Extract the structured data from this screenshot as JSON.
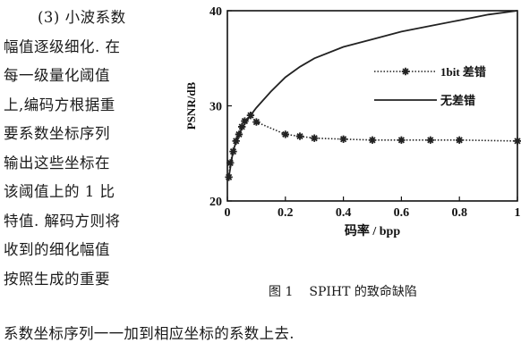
{
  "text": {
    "left_lines": [
      "(3) 小波系数",
      "幅值逐级细化. 在",
      "每一级量化阈值",
      "上,编码方根据重",
      "要系数坐标序列",
      "输出这些坐标在",
      "该阈值上的 1 比",
      "特值. 解码方则将",
      "收到的细化幅值",
      "按照生成的重要"
    ],
    "bottom_line": "系数坐标序列一一加到相应坐标的系数上去."
  },
  "figure": {
    "number": "图 1",
    "caption": "SPIHT 的致命缺陷"
  },
  "chart_data": {
    "type": "line",
    "xlabel": "码率 / bpp",
    "ylabel": "PSNR/dB",
    "xlim": [
      0,
      1
    ],
    "ylim": [
      20,
      40
    ],
    "xticks": [
      "0",
      "0.2",
      "0.4",
      "0.6",
      "0.8",
      "1"
    ],
    "yticks": [
      "20",
      "30",
      "40"
    ],
    "legend_position": "right",
    "series": [
      {
        "name": "1bit 差错",
        "style": "dotted-star",
        "color": "#222222",
        "x": [
          0.005,
          0.01,
          0.02,
          0.03,
          0.04,
          0.05,
          0.06,
          0.08,
          0.1,
          0.2,
          0.25,
          0.3,
          0.4,
          0.5,
          0.6,
          0.7,
          0.8,
          1.0
        ],
        "y": [
          22.5,
          24.0,
          25.2,
          26.3,
          27.0,
          27.8,
          28.4,
          29.0,
          28.3,
          27.0,
          26.8,
          26.6,
          26.5,
          26.4,
          26.4,
          26.4,
          26.4,
          26.3
        ]
      },
      {
        "name": "无差错",
        "style": "solid",
        "color": "#222222",
        "x": [
          0.005,
          0.02,
          0.04,
          0.06,
          0.08,
          0.1,
          0.15,
          0.2,
          0.25,
          0.3,
          0.4,
          0.5,
          0.6,
          0.7,
          0.8,
          0.9,
          1.0
        ],
        "y": [
          22.5,
          25.3,
          27.1,
          28.1,
          29.0,
          29.8,
          31.5,
          33.0,
          34.1,
          35.0,
          36.2,
          37.0,
          37.8,
          38.4,
          39.0,
          39.6,
          40.0
        ]
      }
    ]
  }
}
